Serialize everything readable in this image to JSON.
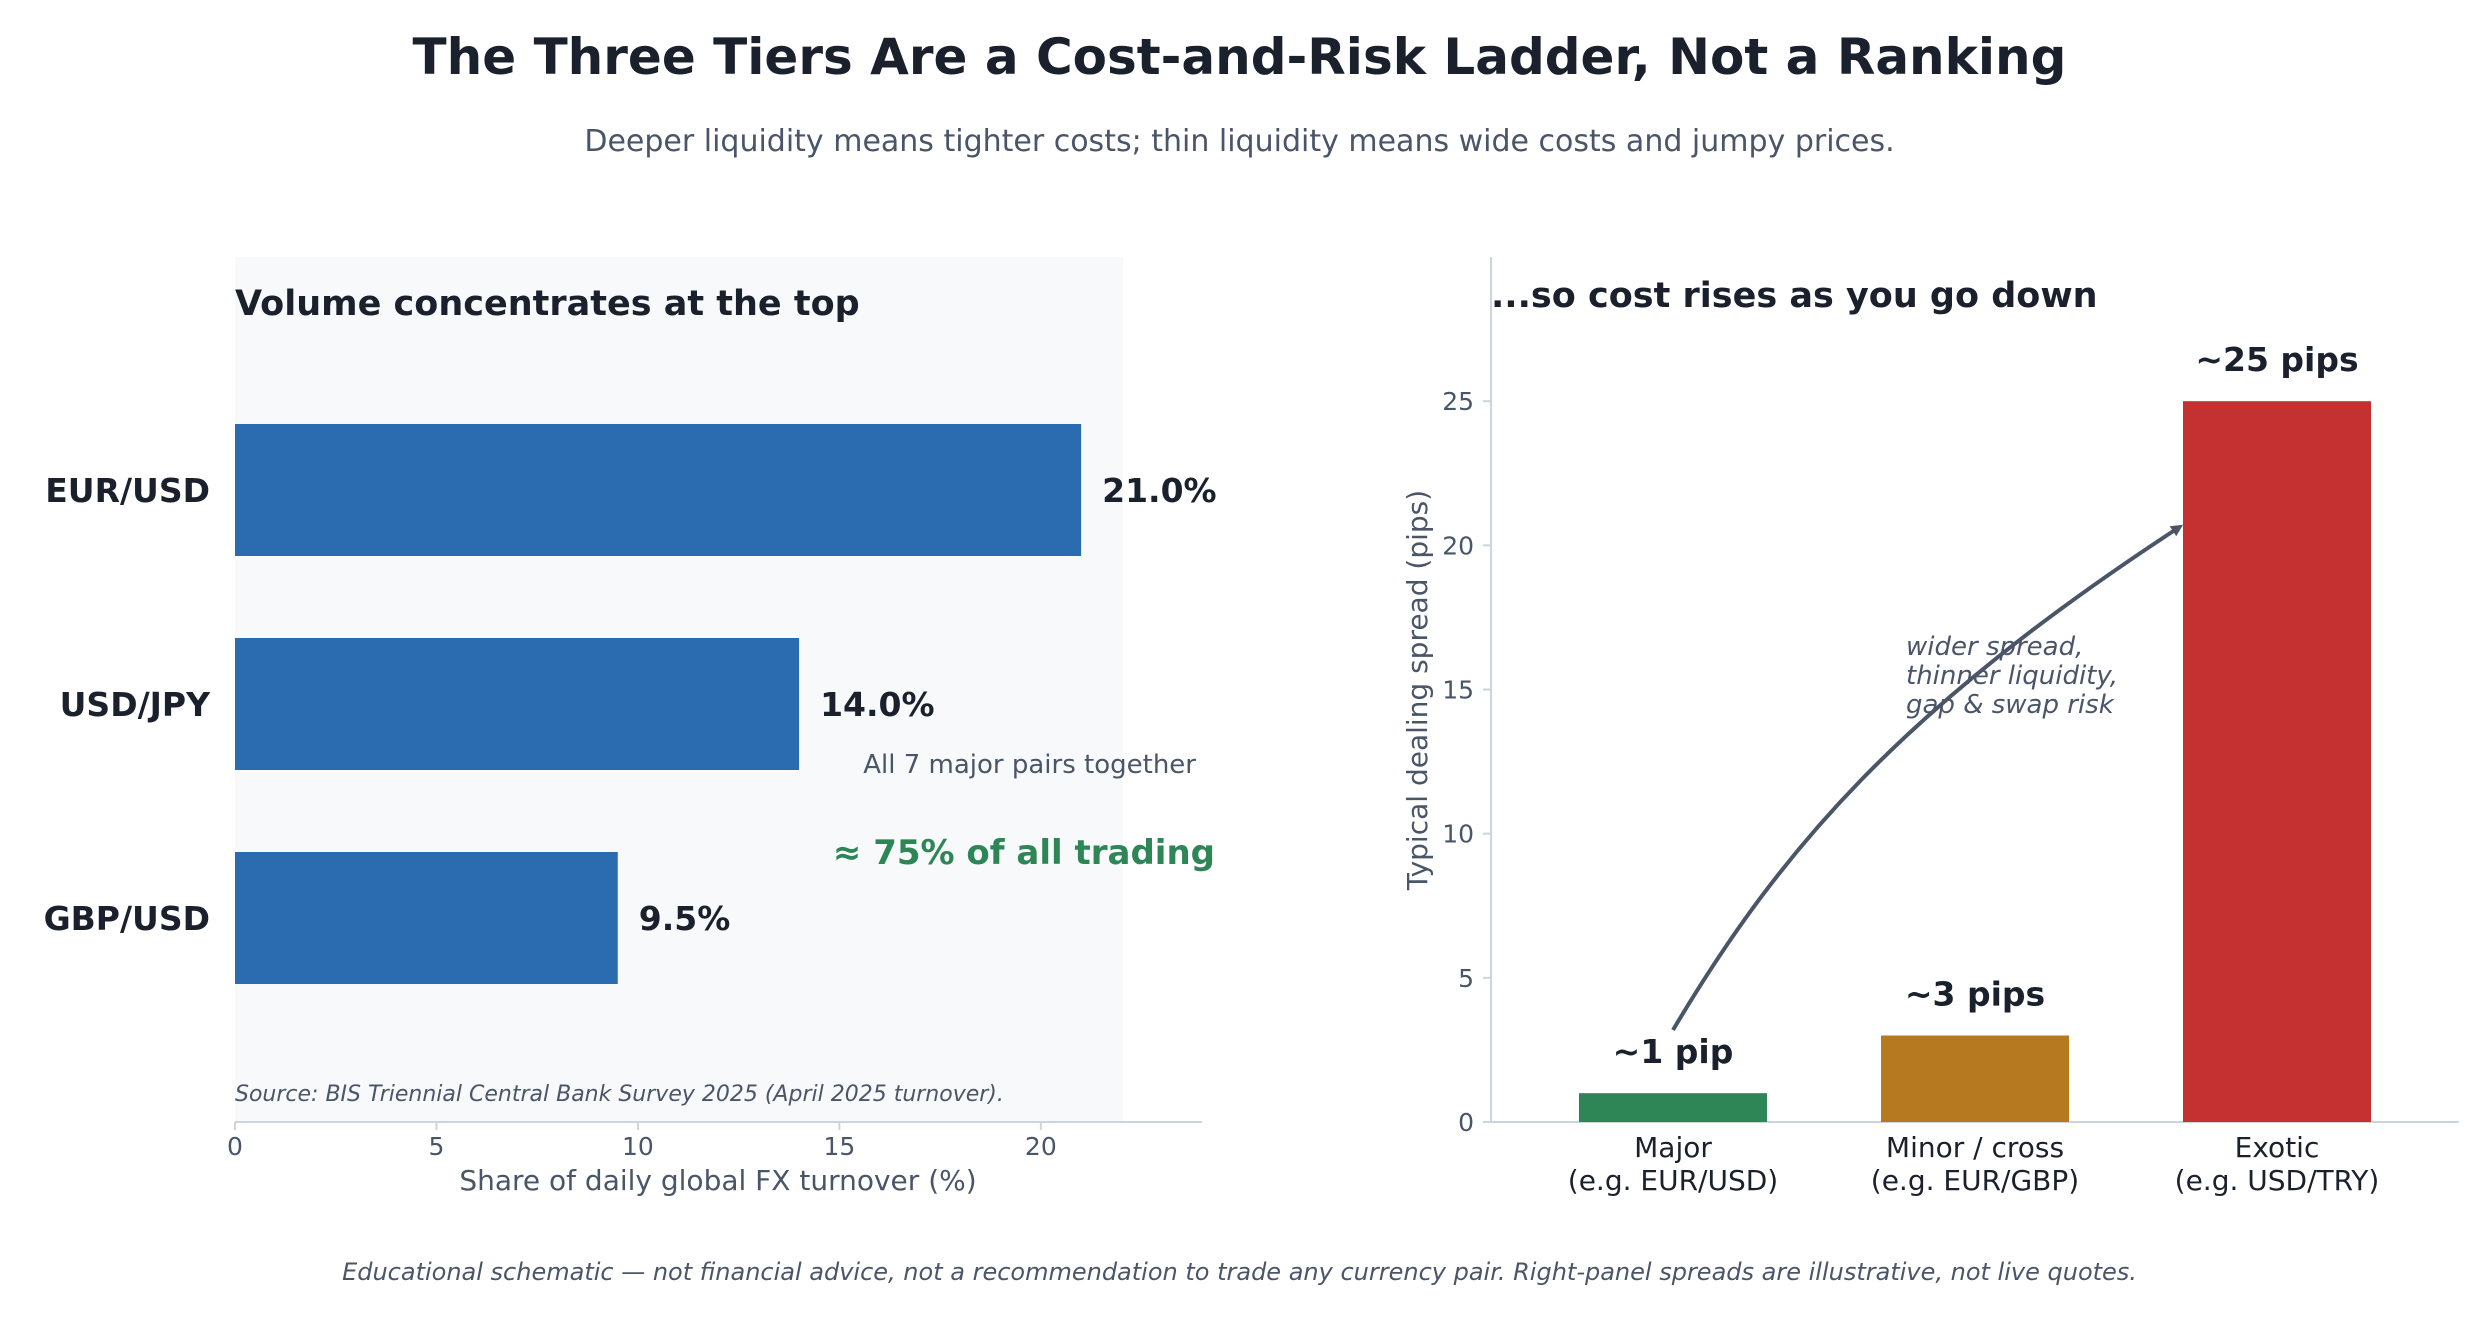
{
  "header": {
    "title": "The Three Tiers Are a Cost-and-Risk Ladder, Not a Ranking",
    "subtitle": "Deeper liquidity means tighter costs; thin liquidity means wide costs and jumpy prices."
  },
  "footer": {
    "note": "Educational schematic — not financial advice, not a recommendation to trade any currency pair.  Right-panel spreads are illustrative, not live quotes."
  },
  "chart_data": [
    {
      "type": "bar",
      "orientation": "horizontal",
      "title": "Volume concentrates at the top",
      "xlabel": "Share of daily global FX turnover (%)",
      "ylabel": "",
      "xlim": [
        0,
        24
      ],
      "xticks": [
        0,
        5,
        10,
        15,
        20
      ],
      "categories": [
        "EUR/USD",
        "USD/JPY",
        "GBP/USD"
      ],
      "values": [
        21.0,
        14.0,
        9.5
      ],
      "value_labels": [
        "21.0%",
        "14.0%",
        "9.5%"
      ],
      "bar_color": "#2b6cb0",
      "panel_background": "#f7f9fb",
      "annotations": {
        "note": "All 7 major pairs together",
        "highlight": "≈ 75% of all trading",
        "highlight_color": "#2e8555",
        "source": "Source: BIS Triennial Central Bank Survey 2025 (April 2025 turnover)."
      },
      "grid": false
    },
    {
      "type": "bar",
      "orientation": "vertical",
      "title": "...so cost rises as you go down",
      "xlabel": "",
      "ylabel": "Typical dealing spread (pips)",
      "ylim": [
        0,
        30
      ],
      "yticks": [
        0,
        5,
        10,
        15,
        20,
        25
      ],
      "categories": [
        {
          "line1": "Major",
          "line2": "(e.g. EUR/USD)"
        },
        {
          "line1": "Minor / cross",
          "line2": "(e.g. EUR/GBP)"
        },
        {
          "line1": "Exotic",
          "line2": "(e.g. USD/TRY)"
        }
      ],
      "values": [
        1,
        3,
        25
      ],
      "value_labels": [
        "~1 pip",
        "~3 pips",
        "~25 pips"
      ],
      "colors": [
        "#2e8555",
        "#b7791f",
        "#c53030"
      ],
      "arrow_annotation": {
        "line1": "wider spread,",
        "line2": "thinner liquidity,",
        "line3": "gap & swap risk"
      },
      "grid": false
    }
  ]
}
